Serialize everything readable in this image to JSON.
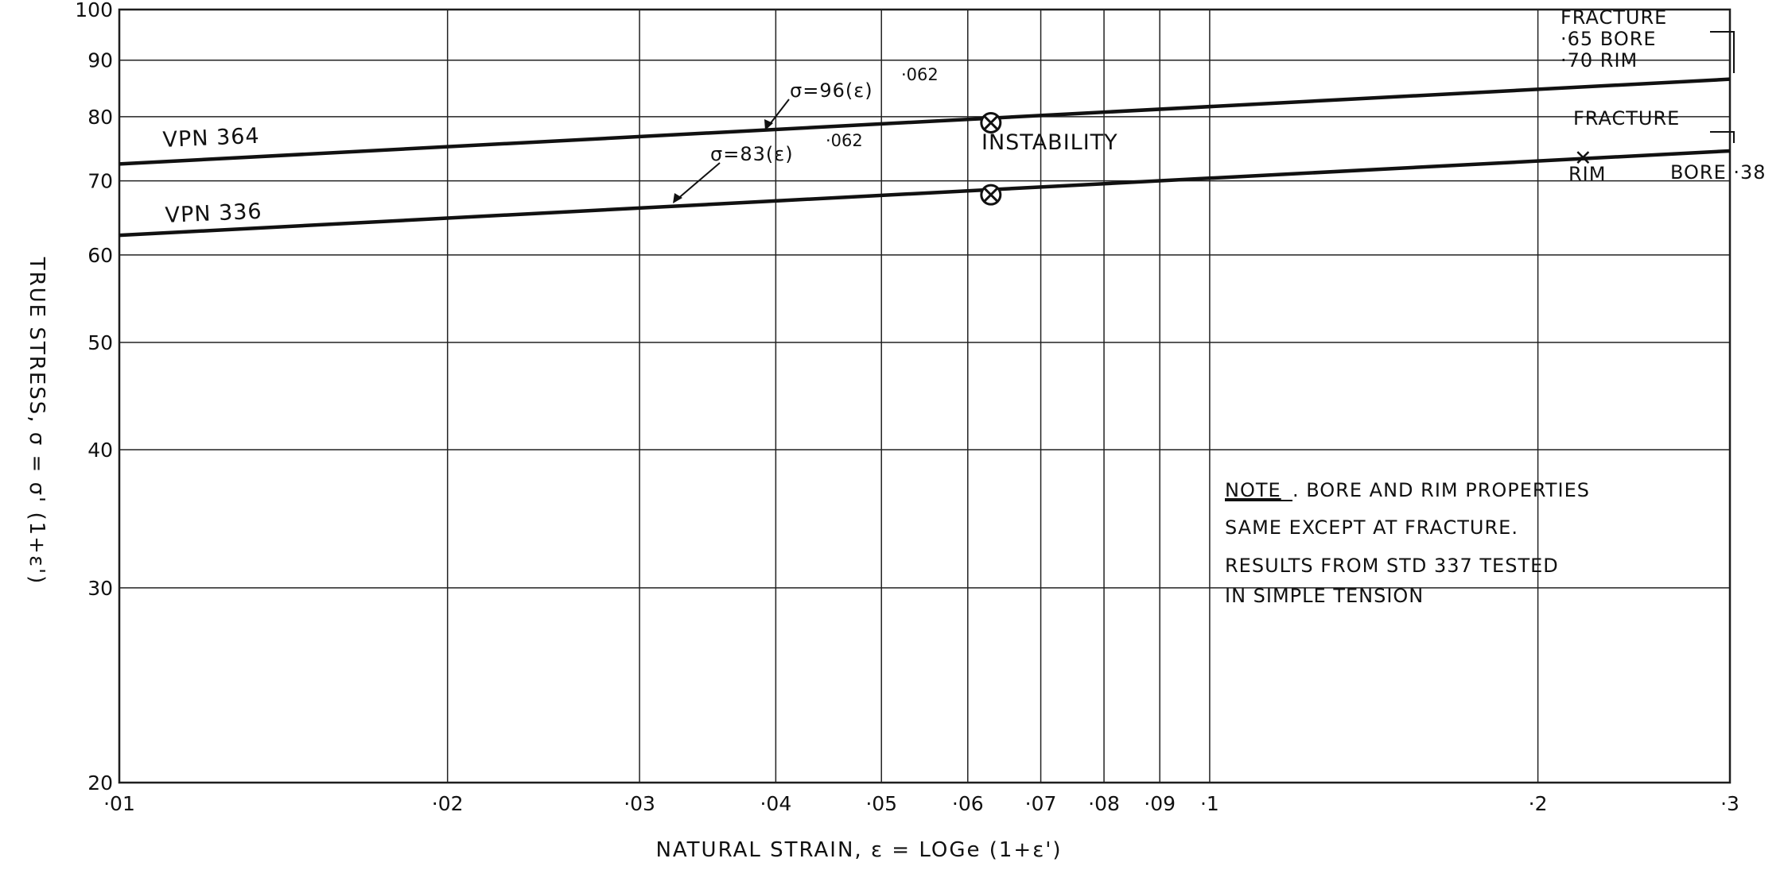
{
  "chart_data": {
    "type": "line",
    "xscale": "log",
    "yscale": "log",
    "xlim": [
      0.01,
      0.3
    ],
    "ylim": [
      20,
      100
    ],
    "grid": true,
    "xlabel": "NATURAL STRAIN, ε = LOGe (1+ε')",
    "ylabel": "TRUE STRESS, σ = σ' (1+ε')",
    "x_ticks": [
      {
        "value": 0.01,
        "label": "·01"
      },
      {
        "value": 0.02,
        "label": "·02"
      },
      {
        "value": 0.03,
        "label": "·03"
      },
      {
        "value": 0.04,
        "label": "·04"
      },
      {
        "value": 0.05,
        "label": "·05"
      },
      {
        "value": 0.06,
        "label": "·06"
      },
      {
        "value": 0.07,
        "label": "·07"
      },
      {
        "value": 0.08,
        "label": "·08"
      },
      {
        "value": 0.09,
        "label": "·09"
      },
      {
        "value": 0.1,
        "label": "·1"
      },
      {
        "value": 0.2,
        "label": "·2"
      },
      {
        "value": 0.3,
        "label": "·3"
      }
    ],
    "y_ticks": [
      {
        "value": 20,
        "label": "20"
      },
      {
        "value": 30,
        "label": "30"
      },
      {
        "value": 40,
        "label": "40"
      },
      {
        "value": 50,
        "label": "50"
      },
      {
        "value": 60,
        "label": "60"
      },
      {
        "value": 70,
        "label": "70"
      },
      {
        "value": 80,
        "label": "80"
      },
      {
        "value": 90,
        "label": "90"
      },
      {
        "value": 100,
        "label": "100"
      }
    ],
    "series": [
      {
        "name": "VPN 364",
        "equation_base": "σ=96(ε)",
        "equation_exponent": "·062",
        "x": [
          0.01,
          0.3
        ],
        "y": [
          72.5,
          86.5
        ]
      },
      {
        "name": "VPN 336",
        "equation_base": "σ=83(ε)",
        "equation_exponent": "·062",
        "x": [
          0.01,
          0.3
        ],
        "y": [
          62.5,
          74.5
        ]
      }
    ],
    "instability_label": "INSTABILITY",
    "instability_points": [
      {
        "x": 0.063,
        "y": 79
      },
      {
        "x": 0.063,
        "y": 68
      }
    ],
    "fracture_points": [
      {
        "x": 0.22,
        "y": 73.5,
        "label": "RIM"
      }
    ],
    "annotations": {
      "fracture_top_1": "FRACTURE",
      "fracture_top_2": "·65 BORE",
      "fracture_top_3": "·70 RIM",
      "fracture_mid": "FRACTURE",
      "rim": "RIM",
      "bore": "BORE ·38",
      "note_heading": "NOTE",
      "note_line1_rest": ". BORE AND RIM PROPERTIES",
      "note_line2": "SAME EXCEPT AT FRACTURE.",
      "note_line3": "RESULTS FROM STD 337 TESTED",
      "note_line4": "IN SIMPLE TENSION"
    }
  }
}
